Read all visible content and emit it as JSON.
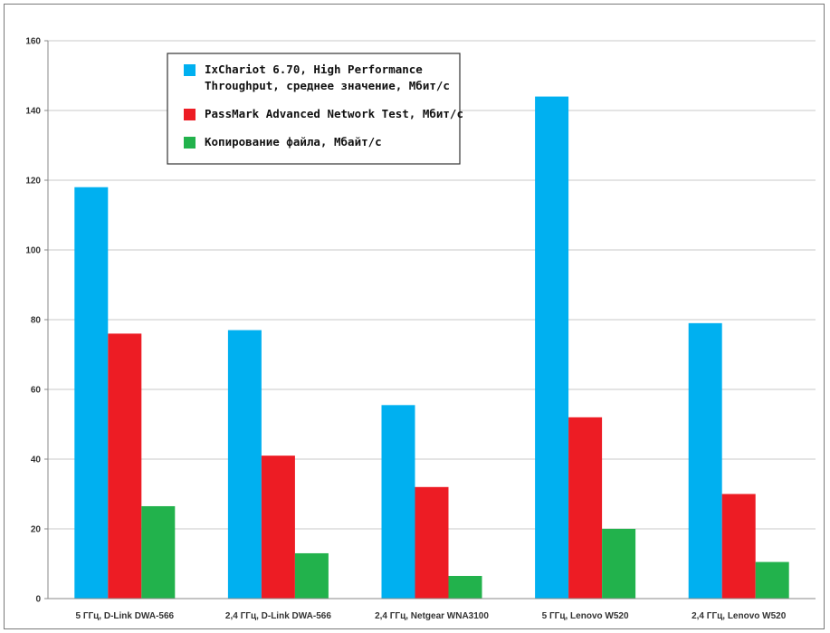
{
  "chart_data": {
    "type": "bar",
    "title": "",
    "xlabel": "",
    "ylabel": "",
    "ylim": [
      0,
      160
    ],
    "yticks": [
      0,
      20,
      40,
      60,
      80,
      100,
      120,
      140,
      160
    ],
    "grid": true,
    "legend_position": "top-left",
    "categories": [
      "5 ГГц, D-Link DWA-566",
      "2,4 ГГц, D-Link DWA-566",
      "2,4 ГГц, Netgear WNA3100",
      "5 ГГц, Lenovo W520",
      "2,4 ГГц, Lenovo W520"
    ],
    "series": [
      {
        "name_lines": [
          "IxChariot 6.70, High Performance",
          "Throughput, среднее значение, Мбит/с"
        ],
        "color": "#00b0f0",
        "values": [
          118,
          77,
          55.5,
          144,
          79
        ]
      },
      {
        "name_lines": [
          "PassMark Advanced Network Test, Мбит/с"
        ],
        "color": "#ed1c24",
        "values": [
          76,
          41,
          32,
          52,
          30
        ]
      },
      {
        "name_lines": [
          "Копирование файла, Мбайт/с"
        ],
        "color": "#22b24c",
        "values": [
          26.5,
          13,
          6.5,
          20,
          10.5
        ]
      }
    ]
  }
}
